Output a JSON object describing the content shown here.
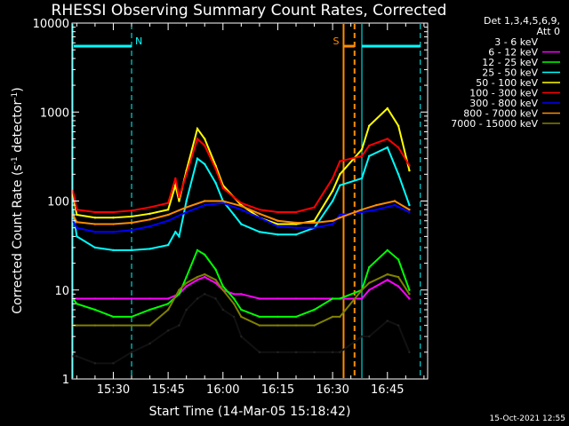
{
  "chart_data": {
    "type": "line",
    "title": "RHESSI Observing Summary Count Rates, Corrected",
    "xlabel": "Start Time (14-Mar-05 15:18:42)",
    "ylabel_parts": [
      "Corrected Count Rate (s",
      "-1",
      " detector",
      "-1",
      ")"
    ],
    "ylog": true,
    "ylim": [
      1,
      10000
    ],
    "ytick_values": [
      1,
      10,
      100,
      1000,
      10000
    ],
    "ytick_labels": [
      "1",
      "10",
      "100",
      "1000",
      "10000"
    ],
    "xlim": [
      "15:18:42",
      "16:56:00"
    ],
    "xtick_labels": [
      "15:30",
      "15:45",
      "16:00",
      "16:15",
      "16:30",
      "16:45"
    ],
    "legend_header": [
      "Det 1,3,4,5,6,9,",
      "Att 0"
    ],
    "series": [
      {
        "name": "3 - 6 keV",
        "color": "#000000",
        "x": [
          "15:18",
          "15:20",
          "15:25",
          "15:30",
          "15:35",
          "15:40",
          "15:45",
          "15:48",
          "15:50",
          "15:53",
          "15:55",
          "15:58",
          "16:00",
          "16:03",
          "16:05",
          "16:10",
          "16:15",
          "16:20",
          "16:25",
          "16:30",
          "16:32",
          "16:38",
          "16:40",
          "16:45",
          "16:48",
          "16:51"
        ],
        "values": [
          1.8,
          1.8,
          1.5,
          1.5,
          2.0,
          2.5,
          3.5,
          4,
          6,
          8,
          9,
          8,
          6,
          5,
          3,
          2,
          2,
          2,
          2,
          2,
          2,
          3,
          3,
          4.5,
          4,
          2
        ]
      },
      {
        "name": "6 - 12 keV",
        "color": "#ff00ff",
        "x": [
          "15:18",
          "15:20",
          "15:25",
          "15:30",
          "15:35",
          "15:40",
          "15:45",
          "15:48",
          "15:50",
          "15:53",
          "15:55",
          "15:58",
          "16:00",
          "16:03",
          "16:05",
          "16:10",
          "16:15",
          "16:20",
          "16:25",
          "16:30",
          "16:32",
          "16:38",
          "16:40",
          "16:45",
          "16:48",
          "16:51"
        ],
        "values": [
          8,
          8,
          8,
          8,
          8,
          8,
          8,
          9,
          11,
          13,
          14,
          12,
          10,
          9,
          9,
          8,
          8,
          8,
          8,
          8,
          8,
          8,
          10,
          13,
          11,
          8
        ]
      },
      {
        "name": "12 - 25 keV",
        "color": "#00ff00",
        "x": [
          "15:18",
          "15:20",
          "15:25",
          "15:30",
          "15:35",
          "15:40",
          "15:45",
          "15:48",
          "15:50",
          "15:53",
          "15:55",
          "15:58",
          "16:00",
          "16:03",
          "16:05",
          "16:10",
          "16:15",
          "16:20",
          "16:25",
          "16:30",
          "16:32",
          "16:38",
          "16:40",
          "16:45",
          "16:48",
          "16:51"
        ],
        "values": [
          8,
          7,
          6,
          5,
          5,
          6,
          7,
          9,
          14,
          28,
          25,
          17,
          11,
          8,
          6,
          5,
          5,
          5,
          6,
          8,
          8,
          10,
          18,
          28,
          22,
          10
        ]
      },
      {
        "name": "25 - 50 keV",
        "color": "#00ffff",
        "x": [
          "15:18",
          "15:20",
          "15:25",
          "15:30",
          "15:35",
          "15:40",
          "15:45",
          "15:47",
          "15:48",
          "15:50",
          "15:53",
          "15:55",
          "15:58",
          "16:00",
          "16:03",
          "16:05",
          "16:10",
          "16:15",
          "16:20",
          "16:25",
          "16:30",
          "16:32",
          "16:38",
          "16:40",
          "16:45",
          "16:48",
          "16:51"
        ],
        "values": [
          80,
          40,
          30,
          28,
          28,
          29,
          32,
          45,
          40,
          100,
          300,
          260,
          160,
          100,
          70,
          55,
          45,
          42,
          42,
          50,
          100,
          150,
          180,
          320,
          400,
          200,
          90
        ]
      },
      {
        "name": "50 - 100 keV",
        "color": "#ffff00",
        "x": [
          "15:18",
          "15:20",
          "15:25",
          "15:30",
          "15:35",
          "15:40",
          "15:45",
          "15:47",
          "15:48",
          "15:50",
          "15:53",
          "15:55",
          "15:58",
          "16:00",
          "16:03",
          "16:05",
          "16:10",
          "16:15",
          "16:20",
          "16:25",
          "16:30",
          "16:32",
          "16:38",
          "16:40",
          "16:45",
          "16:48",
          "16:51"
        ],
        "values": [
          120,
          70,
          65,
          65,
          67,
          72,
          80,
          150,
          100,
          220,
          650,
          500,
          250,
          150,
          110,
          90,
          65,
          55,
          55,
          60,
          130,
          200,
          380,
          700,
          1100,
          700,
          220
        ]
      },
      {
        "name": "100 - 300 keV",
        "color": "#ff0000",
        "x": [
          "15:18",
          "15:20",
          "15:25",
          "15:30",
          "15:35",
          "15:40",
          "15:45",
          "15:47",
          "15:48",
          "15:50",
          "15:53",
          "15:55",
          "15:58",
          "16:00",
          "16:03",
          "16:05",
          "16:10",
          "16:15",
          "16:20",
          "16:25",
          "16:30",
          "16:32",
          "16:38",
          "16:40",
          "16:45",
          "16:48",
          "16:51"
        ],
        "values": [
          130,
          80,
          75,
          75,
          78,
          85,
          95,
          180,
          110,
          200,
          500,
          420,
          230,
          140,
          110,
          95,
          80,
          75,
          75,
          85,
          180,
          280,
          320,
          420,
          500,
          400,
          250
        ]
      },
      {
        "name": "300 - 800 keV",
        "color": "#0000ff",
        "x": [
          "15:18",
          "15:20",
          "15:25",
          "15:30",
          "15:35",
          "15:40",
          "15:45",
          "15:50",
          "15:55",
          "16:00",
          "16:05",
          "16:10",
          "16:15",
          "16:20",
          "16:25",
          "16:30",
          "16:32",
          "16:38",
          "16:42",
          "16:47",
          "16:51"
        ],
        "values": [
          60,
          50,
          45,
          45,
          47,
          52,
          60,
          75,
          90,
          95,
          80,
          65,
          52,
          50,
          50,
          55,
          70,
          75,
          80,
          90,
          75
        ]
      },
      {
        "name": "800 - 7000 keV",
        "color": "#ff8c00",
        "x": [
          "15:18",
          "15:20",
          "15:25",
          "15:30",
          "15:35",
          "15:40",
          "15:45",
          "15:50",
          "15:55",
          "16:00",
          "16:05",
          "16:10",
          "16:15",
          "16:20",
          "16:25",
          "16:30",
          "16:32",
          "16:38",
          "16:42",
          "16:47",
          "16:51"
        ],
        "values": [
          70,
          58,
          55,
          55,
          57,
          62,
          70,
          85,
          100,
          100,
          88,
          72,
          60,
          57,
          57,
          60,
          65,
          80,
          90,
          100,
          80
        ]
      },
      {
        "name": "7000 - 15000 keV",
        "color": "#808000",
        "x": [
          "15:18",
          "15:20",
          "15:25",
          "15:30",
          "15:35",
          "15:40",
          "15:45",
          "15:48",
          "15:50",
          "15:53",
          "15:55",
          "15:58",
          "16:00",
          "16:03",
          "16:05",
          "16:10",
          "16:15",
          "16:20",
          "16:25",
          "16:30",
          "16:32",
          "16:38",
          "16:40",
          "16:45",
          "16:48",
          "16:51"
        ],
        "values": [
          4,
          4,
          4,
          4,
          4,
          4,
          6,
          10,
          12,
          14,
          15,
          13,
          10,
          7,
          5,
          4,
          4,
          4,
          4,
          5,
          5,
          10,
          12,
          15,
          14,
          9
        ]
      }
    ],
    "markers": [
      {
        "type": "night",
        "label": "N",
        "color": "#00ffff",
        "start": "15:18",
        "end": "15:35",
        "y": 5500
      },
      {
        "type": "night",
        "label": "",
        "color": "#00ffff",
        "start": "16:38",
        "end": "16:54",
        "y": 5500
      },
      {
        "type": "saa",
        "label": "S",
        "color": "#ff8c00",
        "start": "16:33",
        "end": "16:36",
        "y": 5500
      }
    ],
    "vertical_lines": [
      {
        "time": "15:18:42",
        "color": "#00ffff",
        "style": "solid"
      },
      {
        "time": "15:35:00",
        "color": "#00ffff",
        "style": "dashed"
      },
      {
        "time": "16:33:00",
        "color": "#ff8c00",
        "style": "solid"
      },
      {
        "time": "16:36:00",
        "color": "#ff8c00",
        "style": "dashed"
      },
      {
        "time": "16:38:00",
        "color": "#00ffff",
        "style": "solid"
      },
      {
        "time": "16:54:00",
        "color": "#00ffff",
        "style": "dashed"
      }
    ]
  },
  "footer": {
    "timestamp": "15-Oct-2021 12:55"
  }
}
